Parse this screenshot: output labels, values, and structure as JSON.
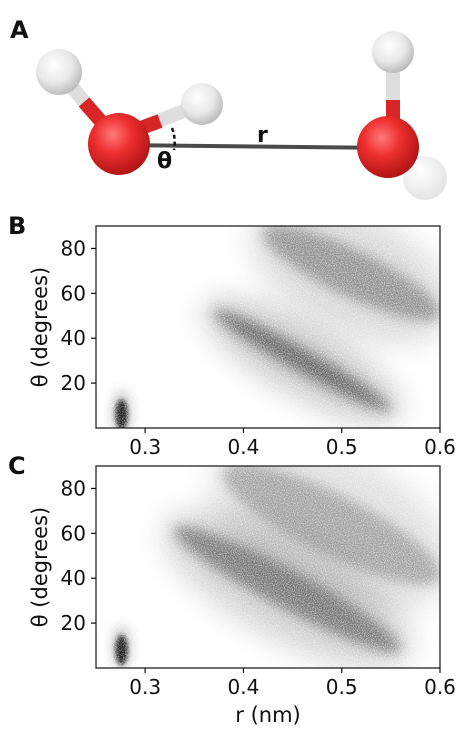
{
  "figure": {
    "panel_a": {
      "letter": "A",
      "distance_label": "r",
      "angle_label": "θ"
    },
    "colors": {
      "oxygen": "#e52a2a",
      "hydrogen": "#e6e6e6",
      "bond": "#4a4a4a",
      "density": "#333333"
    }
  },
  "chart_data": [
    {
      "panel": "B",
      "type": "heatmap",
      "xlabel": "",
      "ylabel": "θ (degrees)",
      "xlim": [
        0.25,
        0.6
      ],
      "ylim": [
        0,
        90
      ],
      "xticks": [
        "0.3",
        "0.4",
        "0.5",
        "0.6"
      ],
      "yticks": [
        "20",
        "40",
        "60",
        "80"
      ],
      "density_regions": [
        {
          "r": 0.276,
          "theta": 6,
          "r_spread": 0.005,
          "theta_spread": 8,
          "intensity": 1.0
        },
        {
          "r_start": 0.37,
          "theta_start": 52,
          "r_end": 0.55,
          "theta_end": 8,
          "intensity": 0.85
        },
        {
          "r_start": 0.42,
          "theta_start": 88,
          "r_end": 0.6,
          "theta_end": 50,
          "intensity": 0.55
        }
      ]
    },
    {
      "panel": "C",
      "type": "heatmap",
      "xlabel": "r (nm)",
      "ylabel": "θ (degrees)",
      "xlim": [
        0.25,
        0.6
      ],
      "ylim": [
        0,
        90
      ],
      "xticks": [
        "0.3",
        "0.4",
        "0.5",
        "0.6"
      ],
      "yticks": [
        "20",
        "40",
        "60",
        "80"
      ],
      "density_regions": [
        {
          "r": 0.276,
          "theta": 8,
          "r_spread": 0.005,
          "theta_spread": 10,
          "intensity": 1.0
        },
        {
          "r_start": 0.33,
          "theta_start": 62,
          "r_end": 0.56,
          "theta_end": 8,
          "intensity": 0.7
        },
        {
          "r_start": 0.38,
          "theta_start": 88,
          "r_end": 0.6,
          "theta_end": 40,
          "intensity": 0.45
        }
      ]
    }
  ]
}
